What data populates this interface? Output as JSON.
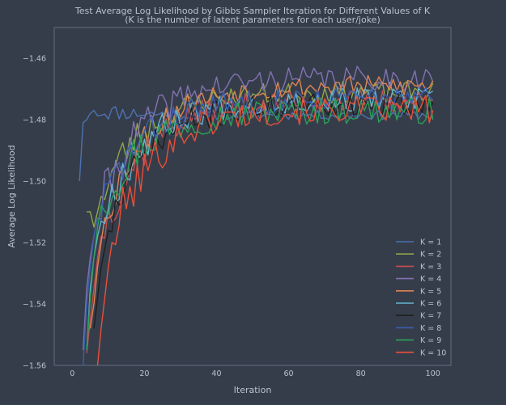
{
  "chart_data": {
    "type": "line",
    "title_line1": "Test Average Log Likelihood by Gibbs Sampler Iteration for Different Values of K",
    "title_line2": "(K is the number of latent parameters for each user/joke)",
    "xlabel": "Iteration",
    "ylabel": "Average Log Likelihood",
    "xlim": [
      -5,
      105
    ],
    "ylim": [
      -1.56,
      -1.45
    ],
    "xticks": [
      0,
      20,
      40,
      60,
      80,
      100
    ],
    "yticks": [
      -1.56,
      -1.54,
      -1.52,
      -1.5,
      -1.48,
      -1.46
    ],
    "ytick_labels": [
      "−1.56",
      "−1.54",
      "−1.52",
      "−1.50",
      "−1.48",
      "−1.46"
    ],
    "grid": false,
    "legend_position": "lower-right",
    "colors": {
      "background": "#363d4a",
      "axes_frame": "#5a6478",
      "text": "#b8c2d0"
    },
    "series": [
      {
        "name": "K = 1",
        "color": "#4c72b0",
        "start": 2,
        "early": [
          -1.5,
          -1.481,
          -1.48,
          -1.478,
          -1.477
        ],
        "base": -1.4785,
        "amp": 0.0015,
        "seed": 11
      },
      {
        "name": "K = 2",
        "color": "#8fa64a",
        "start": 4,
        "early": [
          -1.51,
          -1.51,
          -1.515,
          -1.51,
          -1.505
        ],
        "base": -1.471,
        "amp": 0.0035,
        "seed": 23
      },
      {
        "name": "K = 3",
        "color": "#c44e52",
        "start": 4,
        "early": [
          -1.556,
          -1.545,
          -1.535,
          -1.525,
          -1.518
        ],
        "base": -1.474,
        "amp": 0.004,
        "seed": 37
      },
      {
        "name": "K = 4",
        "color": "#8172b2",
        "start": 3,
        "early": [
          -1.555,
          -1.535,
          -1.525,
          -1.518,
          -1.512
        ],
        "base": -1.4665,
        "amp": 0.004,
        "seed": 41
      },
      {
        "name": "K = 5",
        "color": "#dd8452",
        "start": 5,
        "early": [
          -1.548,
          -1.54,
          -1.528,
          -1.52,
          -1.512
        ],
        "base": -1.469,
        "amp": 0.0035,
        "seed": 53
      },
      {
        "name": "K = 6",
        "color": "#64b5cd",
        "start": 4,
        "early": [
          -1.555,
          -1.535,
          -1.525,
          -1.518,
          -1.513
        ],
        "base": -1.4735,
        "amp": 0.004,
        "seed": 67
      },
      {
        "name": "K = 7",
        "color": "#1f1f1f",
        "start": 6,
        "early": [
          -1.548,
          -1.538,
          -1.528,
          -1.522,
          -1.516
        ],
        "base": -1.475,
        "amp": 0.004,
        "seed": 71
      },
      {
        "name": "K = 8",
        "color": "#3a5fb0",
        "start": 3,
        "early": [
          -1.56,
          -1.54,
          -1.528,
          -1.518,
          -1.512
        ],
        "base": -1.473,
        "amp": 0.004,
        "seed": 83
      },
      {
        "name": "K = 9",
        "color": "#2ca05a",
        "start": 4,
        "early": [
          -1.555,
          -1.538,
          -1.525,
          -1.515,
          -1.508
        ],
        "base": -1.477,
        "amp": 0.0045,
        "seed": 97
      },
      {
        "name": "K = 10",
        "color": "#e8503a",
        "start": 7,
        "early": [
          -1.56,
          -1.548,
          -1.538,
          -1.528,
          -1.52
        ],
        "base": -1.4765,
        "amp": 0.0045,
        "seed": 101
      }
    ]
  }
}
